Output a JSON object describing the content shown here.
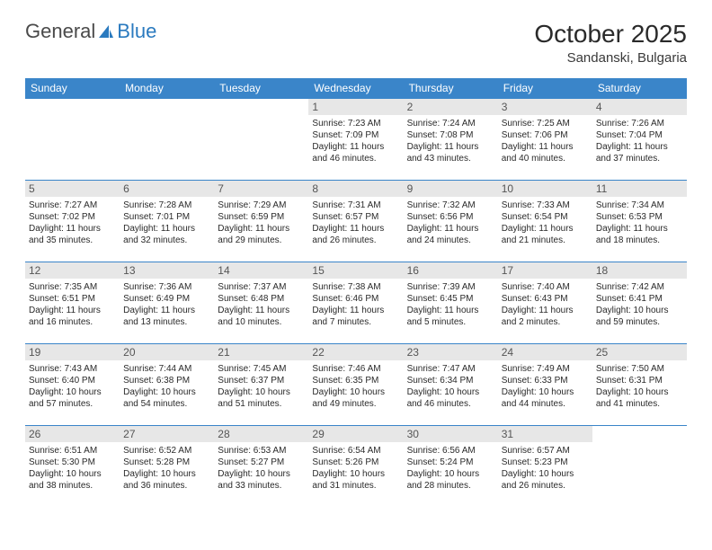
{
  "logo": {
    "text1": "General",
    "text2": "Blue"
  },
  "title": "October 2025",
  "location": "Sandanski, Bulgaria",
  "colors": {
    "header_bg": "#3a85c9",
    "header_text": "#ffffff",
    "daynum_bg": "#e7e7e7",
    "border": "#3a85c9",
    "logo_blue": "#2a7abf"
  },
  "weekdays": [
    "Sunday",
    "Monday",
    "Tuesday",
    "Wednesday",
    "Thursday",
    "Friday",
    "Saturday"
  ],
  "weeks": [
    [
      null,
      null,
      null,
      {
        "n": "1",
        "sr": "Sunrise: 7:23 AM",
        "ss": "Sunset: 7:09 PM",
        "dl": "Daylight: 11 hours and 46 minutes."
      },
      {
        "n": "2",
        "sr": "Sunrise: 7:24 AM",
        "ss": "Sunset: 7:08 PM",
        "dl": "Daylight: 11 hours and 43 minutes."
      },
      {
        "n": "3",
        "sr": "Sunrise: 7:25 AM",
        "ss": "Sunset: 7:06 PM",
        "dl": "Daylight: 11 hours and 40 minutes."
      },
      {
        "n": "4",
        "sr": "Sunrise: 7:26 AM",
        "ss": "Sunset: 7:04 PM",
        "dl": "Daylight: 11 hours and 37 minutes."
      }
    ],
    [
      {
        "n": "5",
        "sr": "Sunrise: 7:27 AM",
        "ss": "Sunset: 7:02 PM",
        "dl": "Daylight: 11 hours and 35 minutes."
      },
      {
        "n": "6",
        "sr": "Sunrise: 7:28 AM",
        "ss": "Sunset: 7:01 PM",
        "dl": "Daylight: 11 hours and 32 minutes."
      },
      {
        "n": "7",
        "sr": "Sunrise: 7:29 AM",
        "ss": "Sunset: 6:59 PM",
        "dl": "Daylight: 11 hours and 29 minutes."
      },
      {
        "n": "8",
        "sr": "Sunrise: 7:31 AM",
        "ss": "Sunset: 6:57 PM",
        "dl": "Daylight: 11 hours and 26 minutes."
      },
      {
        "n": "9",
        "sr": "Sunrise: 7:32 AM",
        "ss": "Sunset: 6:56 PM",
        "dl": "Daylight: 11 hours and 24 minutes."
      },
      {
        "n": "10",
        "sr": "Sunrise: 7:33 AM",
        "ss": "Sunset: 6:54 PM",
        "dl": "Daylight: 11 hours and 21 minutes."
      },
      {
        "n": "11",
        "sr": "Sunrise: 7:34 AM",
        "ss": "Sunset: 6:53 PM",
        "dl": "Daylight: 11 hours and 18 minutes."
      }
    ],
    [
      {
        "n": "12",
        "sr": "Sunrise: 7:35 AM",
        "ss": "Sunset: 6:51 PM",
        "dl": "Daylight: 11 hours and 16 minutes."
      },
      {
        "n": "13",
        "sr": "Sunrise: 7:36 AM",
        "ss": "Sunset: 6:49 PM",
        "dl": "Daylight: 11 hours and 13 minutes."
      },
      {
        "n": "14",
        "sr": "Sunrise: 7:37 AM",
        "ss": "Sunset: 6:48 PM",
        "dl": "Daylight: 11 hours and 10 minutes."
      },
      {
        "n": "15",
        "sr": "Sunrise: 7:38 AM",
        "ss": "Sunset: 6:46 PM",
        "dl": "Daylight: 11 hours and 7 minutes."
      },
      {
        "n": "16",
        "sr": "Sunrise: 7:39 AM",
        "ss": "Sunset: 6:45 PM",
        "dl": "Daylight: 11 hours and 5 minutes."
      },
      {
        "n": "17",
        "sr": "Sunrise: 7:40 AM",
        "ss": "Sunset: 6:43 PM",
        "dl": "Daylight: 11 hours and 2 minutes."
      },
      {
        "n": "18",
        "sr": "Sunrise: 7:42 AM",
        "ss": "Sunset: 6:41 PM",
        "dl": "Daylight: 10 hours and 59 minutes."
      }
    ],
    [
      {
        "n": "19",
        "sr": "Sunrise: 7:43 AM",
        "ss": "Sunset: 6:40 PM",
        "dl": "Daylight: 10 hours and 57 minutes."
      },
      {
        "n": "20",
        "sr": "Sunrise: 7:44 AM",
        "ss": "Sunset: 6:38 PM",
        "dl": "Daylight: 10 hours and 54 minutes."
      },
      {
        "n": "21",
        "sr": "Sunrise: 7:45 AM",
        "ss": "Sunset: 6:37 PM",
        "dl": "Daylight: 10 hours and 51 minutes."
      },
      {
        "n": "22",
        "sr": "Sunrise: 7:46 AM",
        "ss": "Sunset: 6:35 PM",
        "dl": "Daylight: 10 hours and 49 minutes."
      },
      {
        "n": "23",
        "sr": "Sunrise: 7:47 AM",
        "ss": "Sunset: 6:34 PM",
        "dl": "Daylight: 10 hours and 46 minutes."
      },
      {
        "n": "24",
        "sr": "Sunrise: 7:49 AM",
        "ss": "Sunset: 6:33 PM",
        "dl": "Daylight: 10 hours and 44 minutes."
      },
      {
        "n": "25",
        "sr": "Sunrise: 7:50 AM",
        "ss": "Sunset: 6:31 PM",
        "dl": "Daylight: 10 hours and 41 minutes."
      }
    ],
    [
      {
        "n": "26",
        "sr": "Sunrise: 6:51 AM",
        "ss": "Sunset: 5:30 PM",
        "dl": "Daylight: 10 hours and 38 minutes."
      },
      {
        "n": "27",
        "sr": "Sunrise: 6:52 AM",
        "ss": "Sunset: 5:28 PM",
        "dl": "Daylight: 10 hours and 36 minutes."
      },
      {
        "n": "28",
        "sr": "Sunrise: 6:53 AM",
        "ss": "Sunset: 5:27 PM",
        "dl": "Daylight: 10 hours and 33 minutes."
      },
      {
        "n": "29",
        "sr": "Sunrise: 6:54 AM",
        "ss": "Sunset: 5:26 PM",
        "dl": "Daylight: 10 hours and 31 minutes."
      },
      {
        "n": "30",
        "sr": "Sunrise: 6:56 AM",
        "ss": "Sunset: 5:24 PM",
        "dl": "Daylight: 10 hours and 28 minutes."
      },
      {
        "n": "31",
        "sr": "Sunrise: 6:57 AM",
        "ss": "Sunset: 5:23 PM",
        "dl": "Daylight: 10 hours and 26 minutes."
      },
      null
    ]
  ]
}
